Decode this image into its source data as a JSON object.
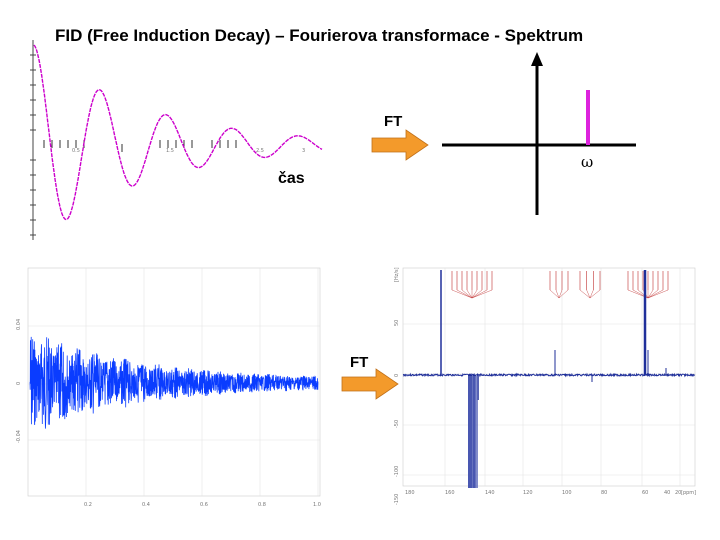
{
  "title": "FID (Free Induction Decay) – Fourierova transformace - Spektrum",
  "labels": {
    "top_ft": "FT",
    "bottom_ft": "FT",
    "time_axis": "čas",
    "omega": "ω"
  },
  "top_fid_ticks": [
    "0.5",
    "1.5",
    "2.5",
    "3"
  ],
  "fid_plot": {
    "y_ticks": [
      "0.04",
      "0",
      "-0.04"
    ],
    "x_ticks": [
      "0.2",
      "0.4",
      "0.6",
      "0.8",
      "1.0"
    ]
  },
  "spectrum_plot": {
    "y_ticks": [
      "[Hz/s]",
      "50",
      "0",
      "-50",
      "-100",
      "-150"
    ],
    "x_ticks": [
      "180",
      "160",
      "140",
      "120",
      "100",
      "80",
      "60",
      "40",
      "20",
      "[ppm]"
    ]
  },
  "colors": {
    "fid_curve": "#cc00cc",
    "arrow": "#f39a2b",
    "arrow_edge": "#c0701a",
    "spectrum_line": "#dd22dd",
    "fid_signal": "#0a3cff",
    "spectrum_signal": "#1f2f9a",
    "peak_labels": "#c03030"
  }
}
